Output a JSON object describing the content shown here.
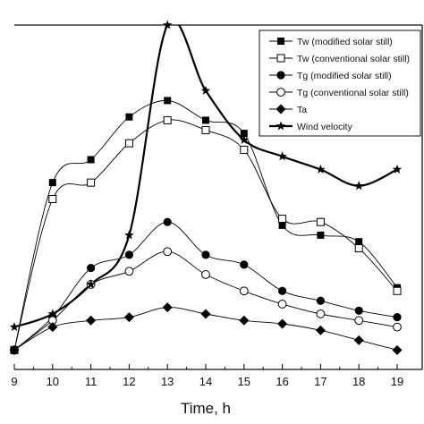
{
  "chart_data": {
    "type": "line",
    "xlabel": "Time, h",
    "ylabel": "",
    "title": "",
    "xlim": [
      9,
      19.6
    ],
    "ylim": [
      0,
      100
    ],
    "x_ticks": [
      "9",
      "10",
      "11",
      "12",
      "13",
      "14",
      "15",
      "16",
      "17",
      "18",
      "19"
    ],
    "legend_position": "top-right",
    "series": [
      {
        "name": "Tw (modified solar still)",
        "marker": "filled-square",
        "line": "thin",
        "x": [
          9,
          10,
          11,
          12,
          13,
          14,
          15,
          16,
          17,
          18,
          19
        ],
        "y": [
          1,
          52,
          59,
          72,
          77,
          71,
          67,
          39,
          36,
          34,
          20
        ]
      },
      {
        "name": "Tw (conventional solar still)",
        "marker": "open-square",
        "line": "thin",
        "x": [
          9,
          10,
          11,
          12,
          13,
          14,
          15,
          16,
          17,
          18,
          19
        ],
        "y": [
          1,
          47,
          52,
          64,
          71,
          68,
          62,
          41,
          40,
          32,
          19
        ]
      },
      {
        "name": "Tg (modified solar still)",
        "marker": "filled-circle",
        "line": "thin",
        "x": [
          9,
          10,
          11,
          12,
          13,
          14,
          15,
          16,
          17,
          18,
          19
        ],
        "y": [
          1,
          11,
          26,
          30,
          40,
          30,
          27,
          19,
          16,
          13,
          11
        ]
      },
      {
        "name": "Tg (conventional solar still)",
        "marker": "open-circle",
        "line": "thin",
        "x": [
          9,
          10,
          11,
          12,
          13,
          14,
          15,
          16,
          17,
          18,
          19
        ],
        "y": [
          1,
          10,
          21,
          25,
          31,
          24,
          19,
          15,
          12,
          10,
          8
        ]
      },
      {
        "name": "Ta",
        "marker": "filled-diamond",
        "line": "thin",
        "x": [
          9,
          10,
          11,
          12,
          13,
          14,
          15,
          16,
          17,
          18,
          19
        ],
        "y": [
          1,
          8,
          10,
          11,
          14,
          12,
          10,
          9,
          7,
          4,
          1
        ]
      },
      {
        "name": "Wind velocity",
        "marker": "star",
        "line": "thick",
        "x": [
          9,
          10,
          11,
          12,
          13,
          14,
          15,
          16,
          17,
          18,
          19
        ],
        "y": [
          8,
          12,
          21,
          36,
          100,
          80,
          65,
          60,
          56,
          51,
          56
        ]
      }
    ]
  }
}
